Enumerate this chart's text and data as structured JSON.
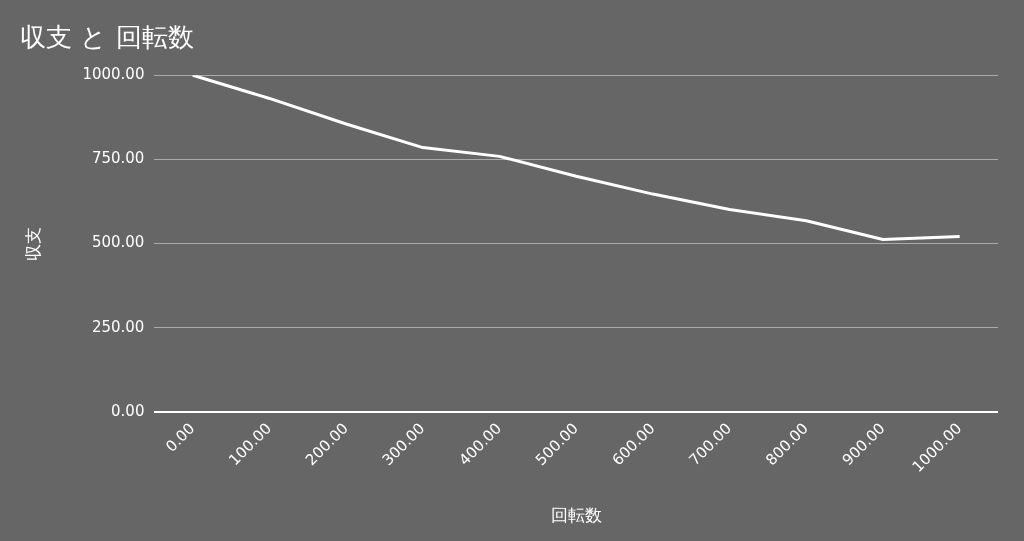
{
  "chart_data": {
    "type": "line",
    "title": "収支 と 回転数",
    "xlabel": "回転数",
    "ylabel": "収支",
    "categories": [
      "0.00",
      "100.00",
      "200.00",
      "300.00",
      "400.00",
      "500.00",
      "600.00",
      "700.00",
      "800.00",
      "900.00",
      "1000.00"
    ],
    "series": [
      {
        "color": "#ffffff",
        "values": [
          1000,
          931,
          855,
          785,
          759,
          700,
          647,
          601,
          568,
          512,
          521
        ]
      }
    ],
    "ylim": [
      0,
      1000
    ],
    "yticks": [
      {
        "value": 0,
        "label": "0.00"
      },
      {
        "value": 250,
        "label": "250.00"
      },
      {
        "value": 500,
        "label": "500.00"
      },
      {
        "value": 750,
        "label": "750.00"
      },
      {
        "value": 1000,
        "label": "1000.00"
      }
    ],
    "grid": "y",
    "legend": false,
    "marker": "none",
    "line_style": "solid"
  }
}
